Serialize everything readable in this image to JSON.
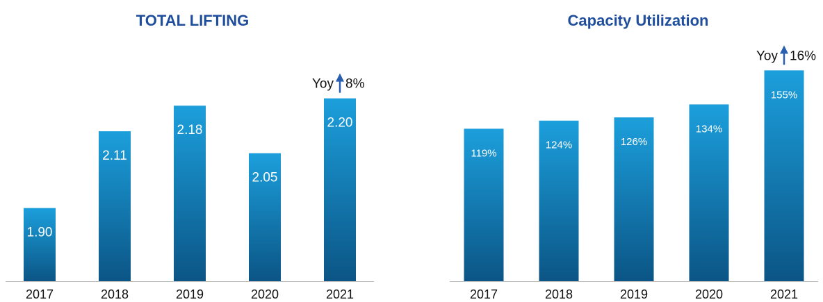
{
  "chart_data": [
    {
      "type": "bar",
      "title": "TOTAL LIFTING",
      "categories": [
        "2017",
        "2018",
        "2019",
        "2020",
        "2021"
      ],
      "values": [
        1.9,
        2.11,
        2.18,
        2.05,
        2.2
      ],
      "value_labels": [
        "1.90",
        "2.11",
        "2.18",
        "2.05",
        "2.20"
      ],
      "ylim": [
        1.7,
        2.3
      ],
      "annotation": {
        "label": "Yoy",
        "change": "8%"
      }
    },
    {
      "type": "bar",
      "title": "Capacity Utilization",
      "categories": [
        "2017",
        "2018",
        "2019",
        "2020",
        "2021"
      ],
      "values": [
        119,
        124,
        126,
        134,
        155
      ],
      "value_labels": [
        "119%",
        "124%",
        "126%",
        "134%",
        "155%"
      ],
      "ylim": [
        25,
        165
      ],
      "annotation": {
        "label": "Yoy",
        "change": "16%"
      }
    }
  ]
}
